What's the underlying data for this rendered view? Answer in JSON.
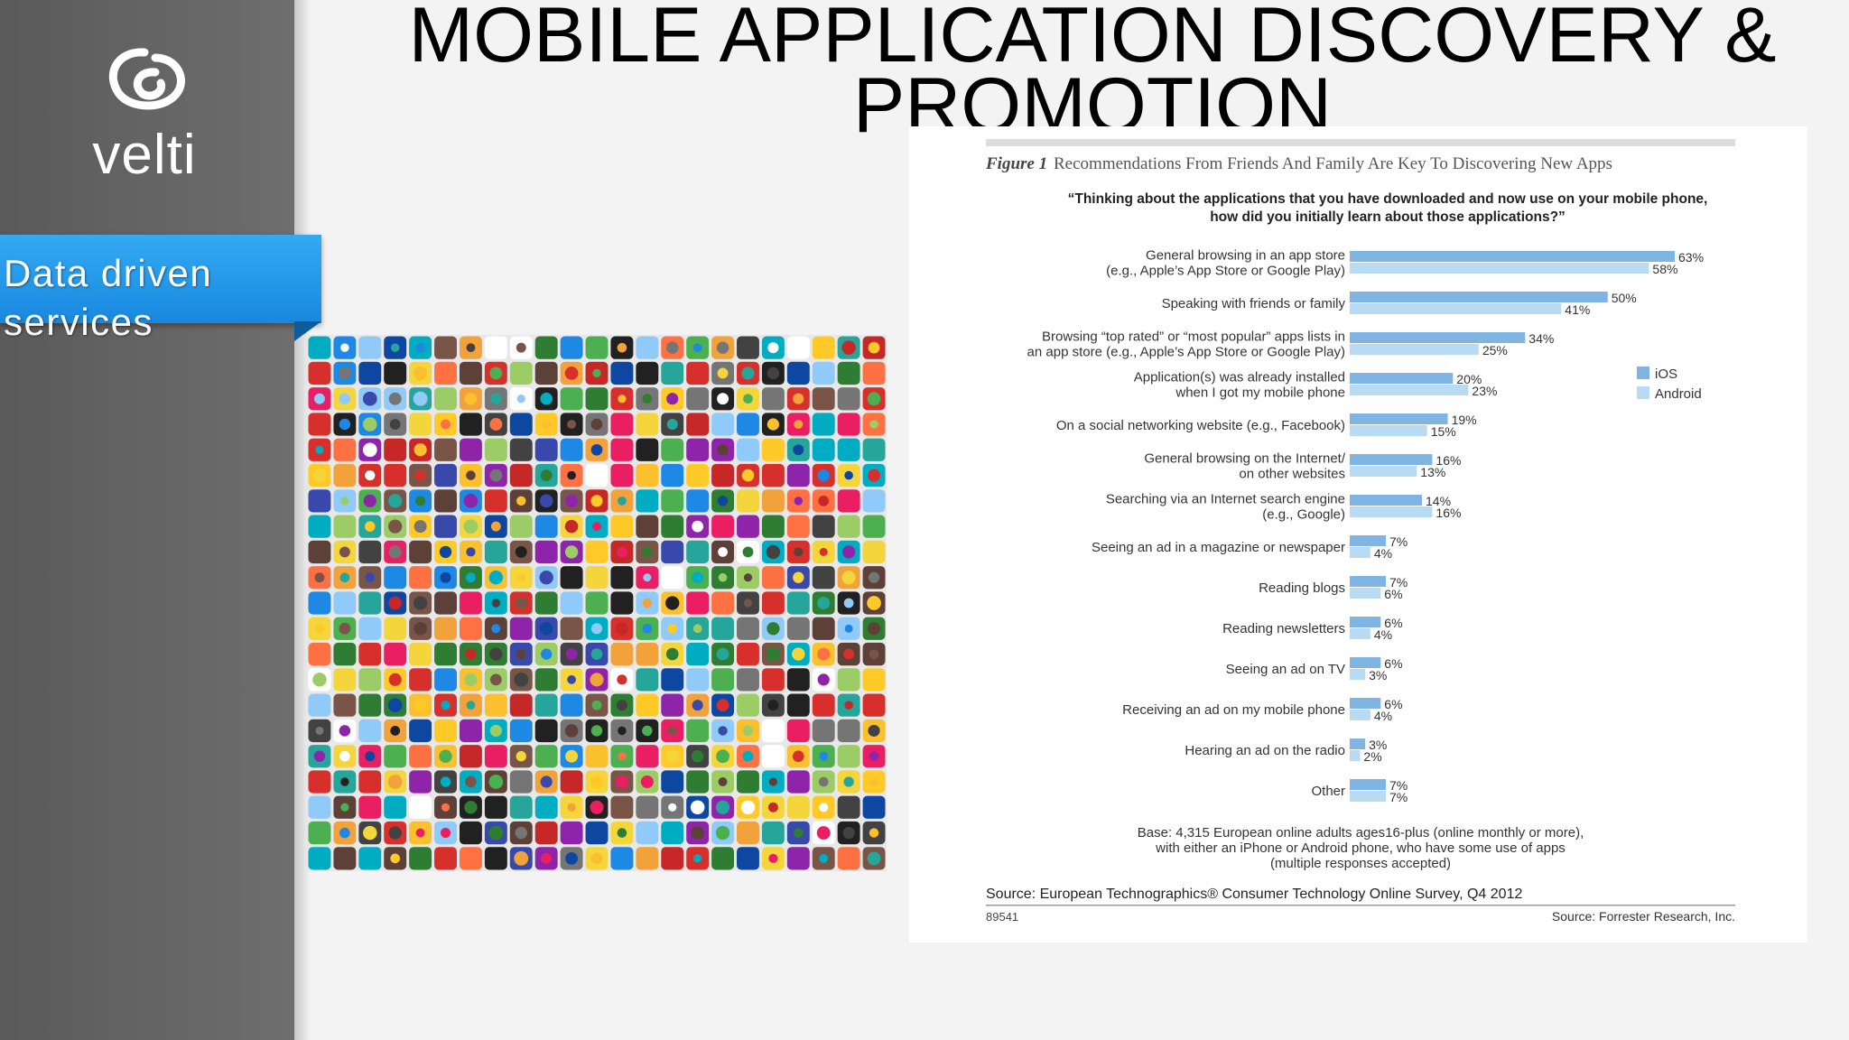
{
  "sidebar": {
    "logo_text": "velti",
    "tab_label_line1": "Data driven",
    "tab_label_line2": "services",
    "colors": {
      "bg": "#666666",
      "tab": "#2596e8"
    }
  },
  "header": {
    "title": "MOBILE APPLICATION DISCOVERY & PROMOTION"
  },
  "mosaic": {
    "description_icon": "app-icons-mosaic"
  },
  "chart_data": {
    "type": "bar",
    "orientation": "horizontal",
    "figure_label": "Figure 1",
    "title": "Recommendations From Friends And Family Are Key To Discovering New Apps",
    "question": "“Thinking about the applications that you have downloaded and now use on your mobile phone, how did you initially learn about those applications?”",
    "categories": [
      [
        "General browsing in an app store",
        "(e.g., Apple’s App Store or Google Play)"
      ],
      [
        "Speaking with friends or family"
      ],
      [
        "Browsing “top rated” or “most popular” apps lists in",
        "an app store (e.g., Apple’s App Store or Google Play)"
      ],
      [
        "Application(s) was already installed",
        "when I got my mobile phone"
      ],
      [
        "On a social networking website (e.g., Facebook)"
      ],
      [
        "General browsing on the Internet/",
        "on other websites"
      ],
      [
        "Searching via an Internet search engine",
        "(e.g., Google)"
      ],
      [
        "Seeing an ad in a magazine or newspaper"
      ],
      [
        "Reading blogs"
      ],
      [
        "Reading newsletters"
      ],
      [
        "Seeing an ad on TV"
      ],
      [
        "Receiving an ad on my mobile phone"
      ],
      [
        "Hearing an ad on the radio"
      ],
      [
        "Other"
      ]
    ],
    "series": [
      {
        "name": "iOS",
        "color": "#7fb4e3",
        "values": [
          63,
          50,
          34,
          20,
          19,
          16,
          14,
          7,
          7,
          6,
          6,
          6,
          3,
          7
        ]
      },
      {
        "name": "Android",
        "color": "#b9daf3",
        "values": [
          58,
          41,
          25,
          23,
          15,
          13,
          16,
          4,
          6,
          4,
          3,
          4,
          2,
          7
        ]
      }
    ],
    "value_suffix": "%",
    "xlim": [
      0,
      63
    ],
    "legend_position": "right",
    "grid": false,
    "base_note": [
      "Base: 4,315 European online adults ages16-plus (online monthly or more),",
      "with either an iPhone or Android phone, who have some use of apps",
      "(multiple responses accepted)"
    ],
    "source": "Source: European Technographics® Consumer Technology Online Survey, Q4 2012",
    "figure_id": "89541",
    "publisher": "Source: Forrester Research, Inc."
  }
}
